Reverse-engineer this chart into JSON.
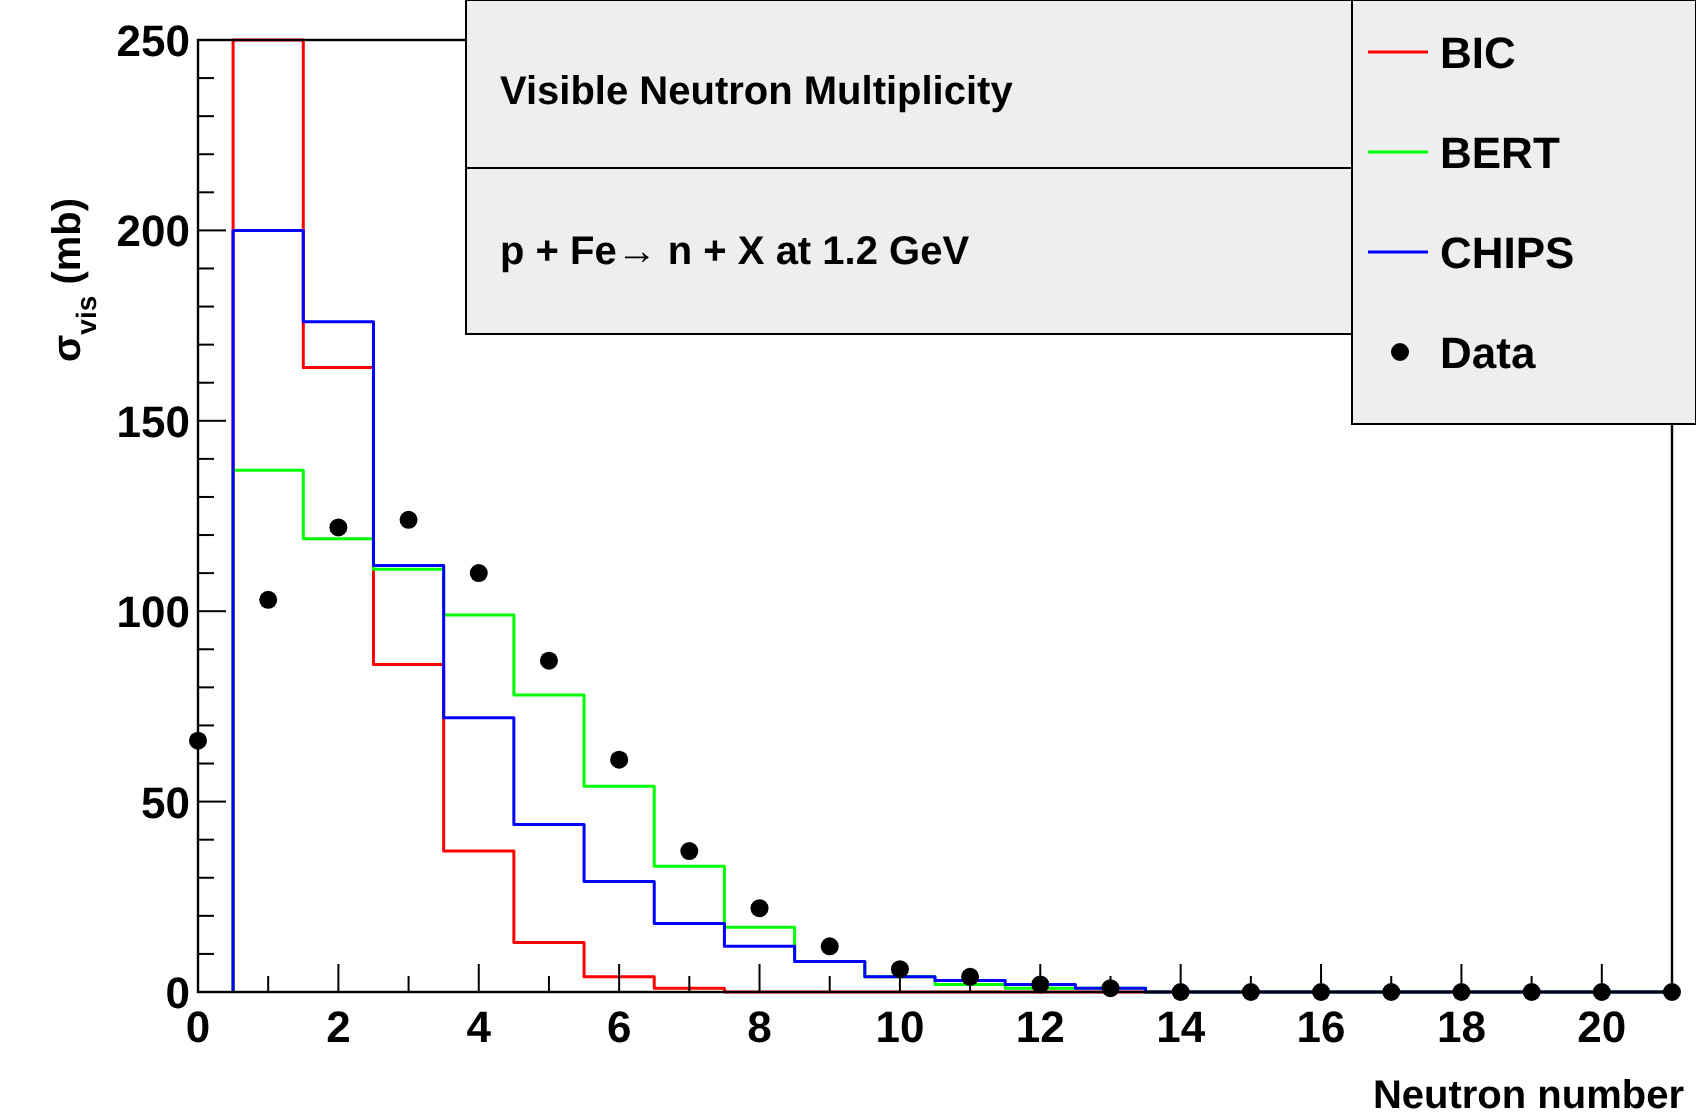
{
  "chart_data": {
    "type": "histogram",
    "title": "Visible Neutron Multiplicity",
    "subtitle": "p + Fe→ n + X at 1.2 GeV",
    "xlabel": "Neutron number",
    "ylabel": "σ$_{vis}$ (mb)",
    "bins": [
      0.5,
      1.5,
      2.5,
      3.5,
      4.5,
      5.5,
      6.5,
      7.5,
      8.5,
      9.5,
      10.5,
      11.5,
      12.5,
      13.5,
      14.5,
      15.5,
      16.5,
      17.5,
      18.5,
      19.5,
      20.5,
      21
    ],
    "series": [
      {
        "name": "BIC",
        "color": "#ff0000",
        "values": [
          250,
          164,
          86,
          37,
          13,
          4,
          1,
          0,
          0,
          0,
          0,
          0,
          0,
          0,
          0,
          0,
          0,
          0,
          0,
          0,
          0
        ]
      },
      {
        "name": "BERT",
        "color": "#00ff00",
        "values": [
          137,
          119,
          111,
          99,
          78,
          54,
          33,
          17,
          8,
          4,
          2,
          1,
          1,
          0,
          0,
          0,
          0,
          0,
          0,
          0,
          0
        ]
      },
      {
        "name": "CHIPS",
        "color": "#0000ff",
        "values": [
          200,
          176,
          112,
          72,
          44,
          29,
          18,
          12,
          8,
          4,
          3,
          2,
          1,
          0,
          0,
          0,
          0,
          0,
          0,
          0,
          0
        ]
      },
      {
        "name": "Data",
        "type": "scatter",
        "color": "#000000",
        "marker": "circle",
        "x": [
          0,
          1,
          2,
          3,
          4,
          5,
          6,
          7,
          8,
          9,
          10,
          11,
          12,
          13,
          14,
          15,
          16,
          17,
          18,
          19,
          20,
          21
        ],
        "values": [
          66,
          103,
          122,
          124,
          110,
          87,
          61,
          37,
          22,
          12,
          6,
          4,
          2,
          1,
          0,
          0,
          0,
          0,
          0,
          0,
          0,
          0
        ]
      }
    ],
    "xlim": [
      0,
      21
    ],
    "xticks": [
      0,
      2,
      4,
      6,
      8,
      10,
      12,
      14,
      16,
      18,
      20
    ],
    "ylim": [
      0,
      250
    ],
    "yticks": [
      0,
      50,
      100,
      150,
      200,
      250
    ],
    "legend": "top right"
  }
}
